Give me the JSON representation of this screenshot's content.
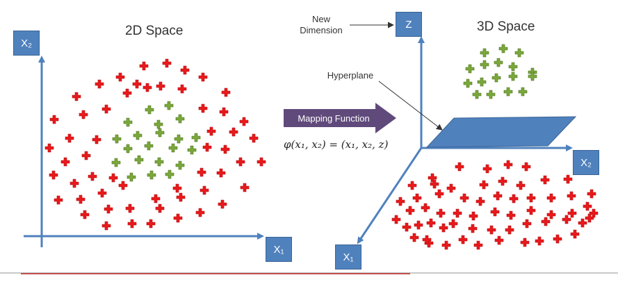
{
  "left_panel": {
    "title": "2D Space",
    "y_axis_label": "X₂",
    "x_axis_label": "X₁"
  },
  "middle": {
    "mapping_label": "Mapping Function",
    "formula": "φ(x₁, x₂) = (x₁, x₂, z)"
  },
  "right_panel": {
    "title": "3D Space",
    "new_dimension_label_line1": "New",
    "new_dimension_label_line2": "Dimension",
    "z_axis_label": "Z",
    "x2_axis_label": "X₂",
    "x1_axis_label": "X₁",
    "hyperplane_label": "Hyperplane"
  },
  "colors": {
    "axis": "#4f81bd",
    "red_class": "#e8191b",
    "green_class": "#7aa83a",
    "arrow_fill": "#604a7b",
    "hyperplane": "#4f81bd"
  }
}
